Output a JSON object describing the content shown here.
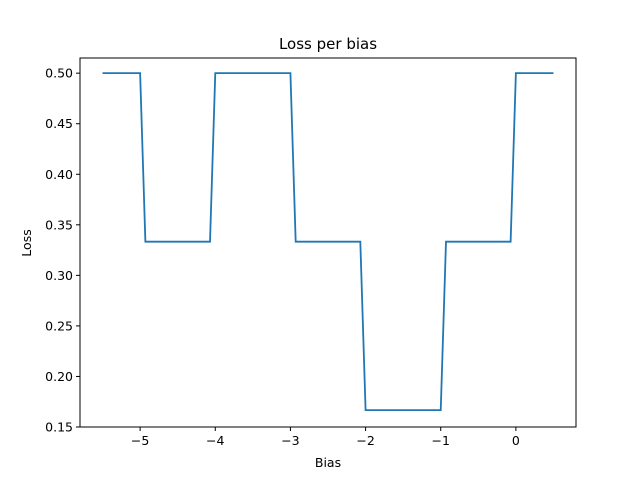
{
  "chart_data": {
    "type": "line",
    "title": "Loss per bias",
    "xlabel": "Bias",
    "ylabel": "Loss",
    "xlim": [
      -5.8,
      0.8
    ],
    "ylim": [
      0.15,
      0.515
    ],
    "x_ticks": [
      -5,
      -4,
      -3,
      -2,
      -1,
      0
    ],
    "x_tick_labels": [
      "−5",
      "−4",
      "−3",
      "−2",
      "−1",
      "0"
    ],
    "y_ticks": [
      0.15,
      0.2,
      0.25,
      0.3,
      0.35,
      0.4,
      0.45,
      0.5
    ],
    "y_tick_labels": [
      "0.15",
      "0.20",
      "0.25",
      "0.30",
      "0.35",
      "0.40",
      "0.45",
      "0.50"
    ],
    "grid": false,
    "legend": "none",
    "line_color": "#1f77b4",
    "series": [
      {
        "x": [
          -5.5,
          -5.0,
          -4.93,
          -4.07,
          -4.0,
          -3.0,
          -2.93,
          -2.07,
          -2.0,
          -1.0,
          -0.93,
          -0.07,
          0.0,
          0.5
        ],
        "y": [
          0.5,
          0.5,
          0.3333,
          0.3333,
          0.5,
          0.5,
          0.3333,
          0.3333,
          0.1667,
          0.1667,
          0.3333,
          0.3333,
          0.5,
          0.5
        ]
      }
    ]
  }
}
